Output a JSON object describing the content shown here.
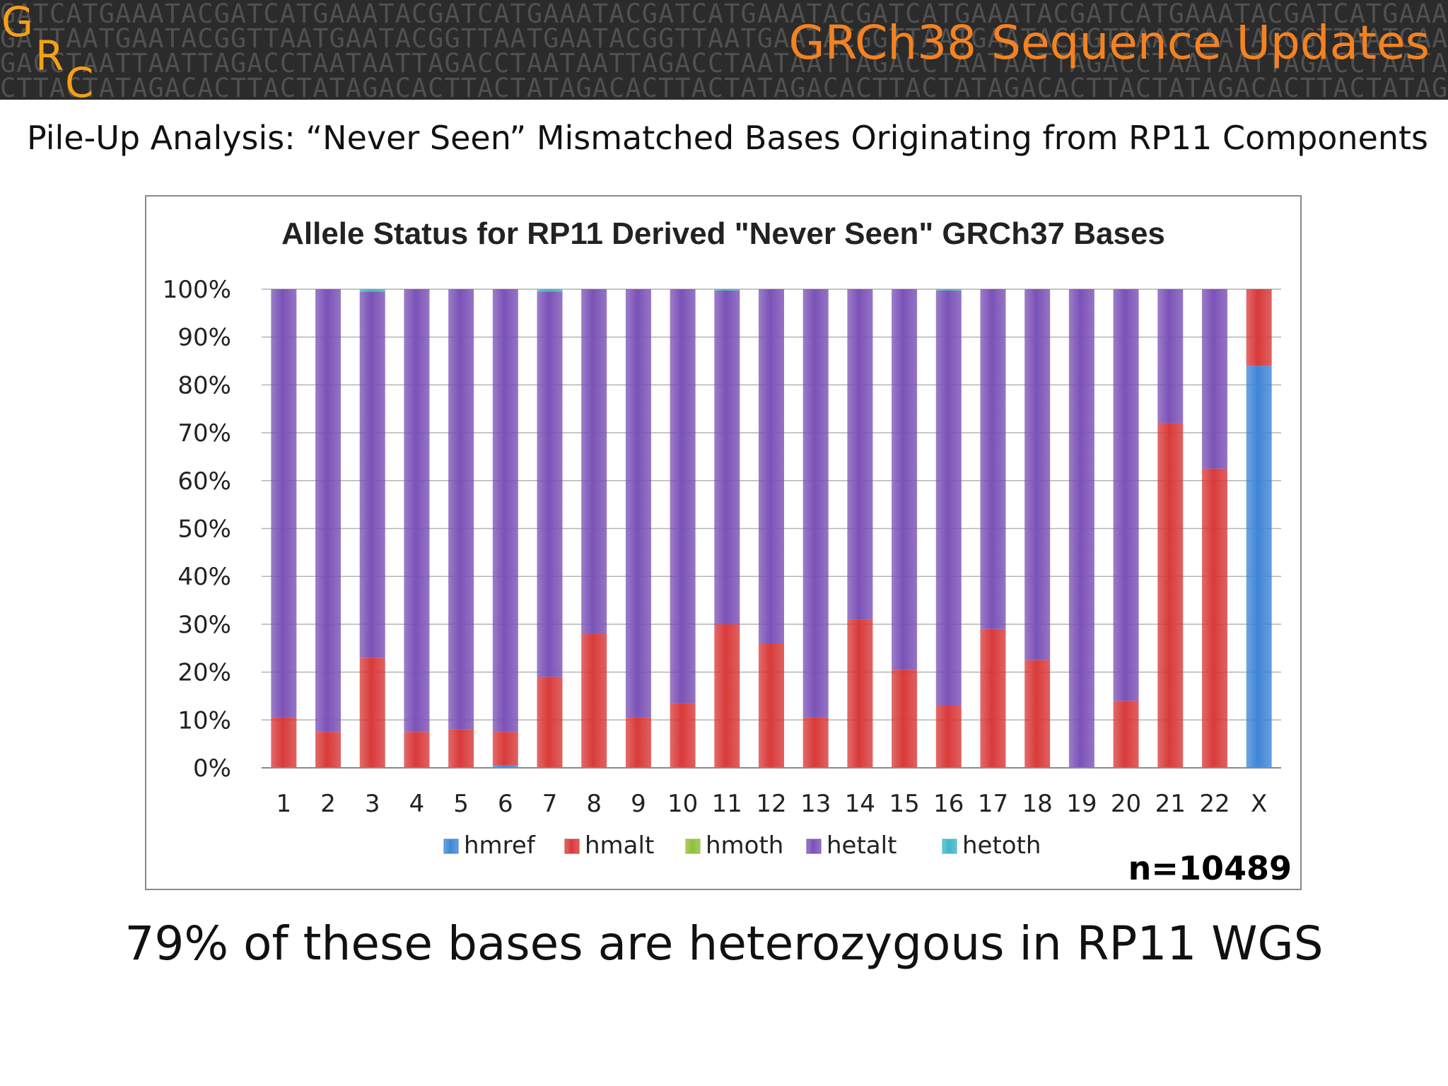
{
  "header": {
    "logo_letters": [
      "G",
      "R",
      "C"
    ],
    "title": "GRCh38 Sequence Updates",
    "dna_rows": [
      "GATCATGAAATACGATCATGAAATACGATCATGAAATACGATCATGAAATACGATCATGAAATACGATCATGAAATACGATCATGAAATACGATCATGAAATACGATCATGAAAT",
      "GATTAATGAATACGGTTAATGAATACGGTTAATGAATACGGTTAATGAATACGGTTAATGAATACGGTTAATGAATACGGTTAATGAATACGGTTAATGAATACGGTTAATGAAT",
      "GACCTAATTAATTAGACCTAATAATTAGACCTAATAATTAGACCTAATAATTAGACCTAATAATTAGACCTAATAATTAGACCTAATAATTAGACCTAATAATTAGACCTAATAA",
      "CTTACTATAGACACTTACTATAGACACTTACTATAGACACTTACTATAGACACTTACTATAGACACTTACTATAGACACTTACTATAGACACTTACTATAGACACTTACTATAGACA"
    ]
  },
  "subtitle": "Pile-Up Analysis: “Never Seen” Mismatched Bases Originating from RP11 Components",
  "n_label": "n=10489",
  "conclusion": "79% of these bases are heterozygous in RP11 WGS",
  "chart_data": {
    "type": "bar",
    "stacked": true,
    "percent_stacked": true,
    "title": "Allele Status for RP11 Derived \"Never Seen\" GRCh37 Bases",
    "xlabel": "",
    "ylabel": "",
    "ylim": [
      0,
      100
    ],
    "y_ticks": [
      "0%",
      "10%",
      "20%",
      "30%",
      "40%",
      "50%",
      "60%",
      "70%",
      "80%",
      "90%",
      "100%"
    ],
    "grid": true,
    "legend_position": "bottom",
    "categories": [
      "1",
      "2",
      "3",
      "4",
      "5",
      "6",
      "7",
      "8",
      "9",
      "10",
      "11",
      "12",
      "13",
      "14",
      "15",
      "16",
      "17",
      "18",
      "19",
      "20",
      "21",
      "22",
      "X"
    ],
    "series": [
      {
        "name": "hmref",
        "color": "#3f86d6",
        "values": [
          0,
          0,
          0,
          0,
          0,
          0.5,
          0,
          0,
          0,
          0,
          0,
          0,
          0,
          0,
          0,
          0,
          0,
          0,
          0,
          0,
          0,
          0,
          84
        ]
      },
      {
        "name": "hmalt",
        "color": "#d93a3a",
        "values": [
          10.5,
          7.5,
          23,
          7.5,
          8,
          7,
          19,
          28,
          10.5,
          13.5,
          30,
          26,
          10.5,
          31,
          20.5,
          13,
          29,
          22.5,
          0,
          14,
          72,
          62.5,
          16
        ]
      },
      {
        "name": "hmoth",
        "color": "#8fbf3a",
        "values": [
          0,
          0,
          0,
          0,
          0,
          0,
          0,
          0,
          0,
          0,
          0,
          0,
          0,
          0,
          0,
          0,
          0,
          0,
          0,
          0,
          0,
          0,
          0
        ]
      },
      {
        "name": "hetalt",
        "color": "#7b52b7",
        "values": [
          89.5,
          92.5,
          76.5,
          92.5,
          92,
          92.5,
          80.5,
          72,
          89.5,
          86.5,
          69.7,
          74,
          89.5,
          69,
          79.5,
          86.7,
          71,
          77.5,
          100,
          86,
          28,
          37.5,
          0
        ]
      },
      {
        "name": "hetoth",
        "color": "#3fb6c9",
        "values": [
          0,
          0,
          0.5,
          0,
          0,
          0,
          0.5,
          0,
          0,
          0,
          0.3,
          0,
          0,
          0,
          0,
          0.3,
          0,
          0,
          0,
          0,
          0,
          0,
          0
        ]
      }
    ]
  }
}
